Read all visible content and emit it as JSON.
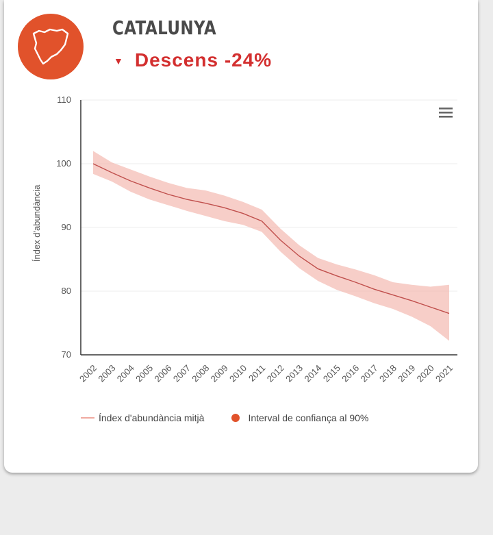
{
  "region": {
    "name": "CATALUNYA",
    "trend_label": "Descens -24%",
    "trend_icon": "triangle-down-icon",
    "badge_icon": "catalonia-map-icon",
    "badge_color": "#e1522b",
    "trend_color": "#d32f2f"
  },
  "chart_data": {
    "type": "line",
    "ylabel": "Índex d'abundància",
    "ylim": [
      70,
      110
    ],
    "yticks": [
      "70",
      "80",
      "90",
      "100",
      "110"
    ],
    "categories": [
      "2002",
      "2003",
      "2004",
      "2005",
      "2006",
      "2007",
      "2008",
      "2009",
      "2010",
      "2011",
      "2012",
      "2013",
      "2014",
      "2015",
      "2016",
      "2017",
      "2018",
      "2019",
      "2020",
      "2021"
    ],
    "series": [
      {
        "name": "Índex d'abundància mitjà",
        "type": "line",
        "color": "#c0504d",
        "values": [
          100,
          98.6,
          97.3,
          96.2,
          95.2,
          94.4,
          93.8,
          93.1,
          92.2,
          91.0,
          88.0,
          85.5,
          83.5,
          82.4,
          81.4,
          80.3,
          79.4,
          78.5,
          77.5,
          76.5
        ]
      },
      {
        "name": "Interval de confiança al 90%",
        "type": "band",
        "color": "#f4b9b0",
        "upper": [
          102,
          100.2,
          99.1,
          98.0,
          97.0,
          96.2,
          95.8,
          95.0,
          94.0,
          92.8,
          89.8,
          87.2,
          85.2,
          84.2,
          83.4,
          82.5,
          81.4,
          81.0,
          80.7,
          81.0
        ],
        "lower": [
          98.4,
          97.2,
          95.6,
          94.4,
          93.5,
          92.6,
          91.8,
          91.0,
          90.4,
          89.3,
          86.2,
          83.6,
          81.6,
          80.2,
          79.2,
          78.1,
          77.2,
          76.0,
          74.5,
          72.2
        ]
      }
    ],
    "grid": true,
    "legend_position": "bottom"
  },
  "chart": {
    "menu_icon": "hamburger-menu-icon"
  },
  "legend": [
    {
      "label": "Índex d'abundància mitjà",
      "marker": "line",
      "color": "#f0a9a0"
    },
    {
      "label": "Interval de confiança al 90%",
      "marker": "dot",
      "color": "#e1522b"
    }
  ]
}
